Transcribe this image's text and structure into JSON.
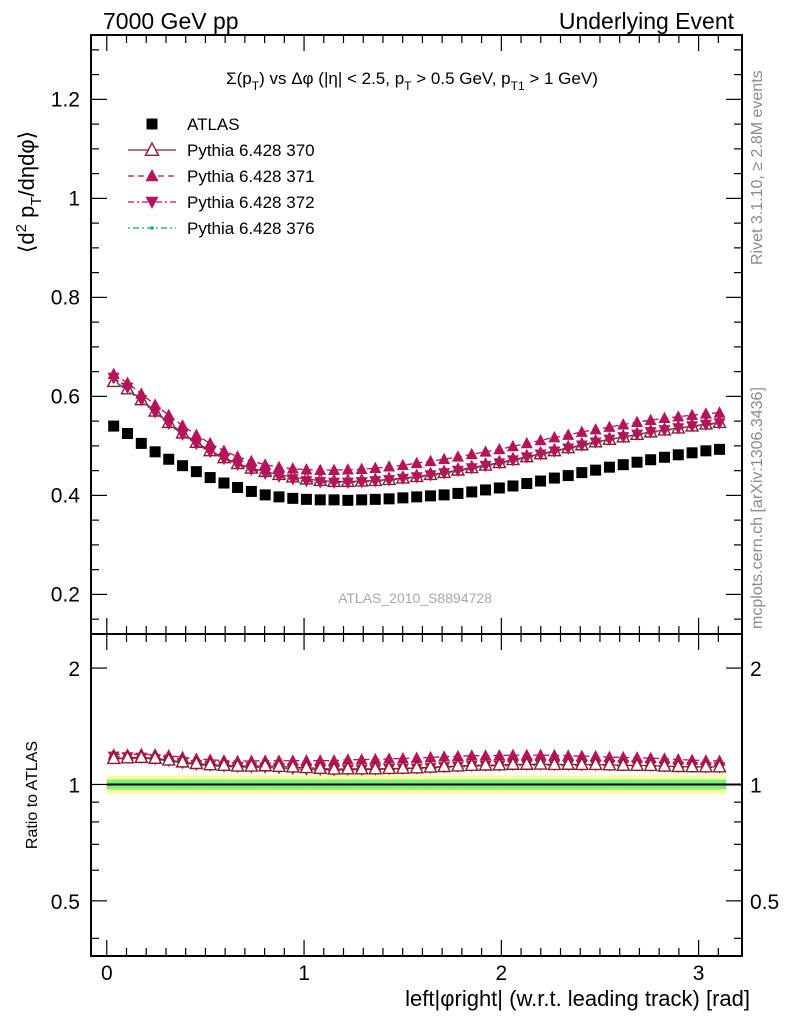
{
  "header": {
    "left": "7000 GeV pp",
    "right": "Underlying Event"
  },
  "side_texts": {
    "rivet": "Rivet 3.1.10, ≥ 2.8M events",
    "mcplots": "mcplots.cern.ch [arXiv:1306.3436]"
  },
  "watermark": "ATLAS_2010_S8894728",
  "colors": {
    "data": "#000000",
    "p370": "#8b1a2b",
    "p371": "#b5135a",
    "p372": "#b5135a",
    "p376": "#1a9a8a",
    "band_inner": "#7cf07c",
    "band_outer": "#ffff99"
  },
  "chart_data": [
    {
      "type": "scatter",
      "title": "Σ(p_T) vs Δφ (|η| < 2.5, p_T > 0.5 GeV, p_T1 > 1 GeV)",
      "ylabel": "⟨d² p_T/dηdφ⟩",
      "xlim": [
        -0.08,
        3.22
      ],
      "ylim": [
        0.12,
        1.33
      ],
      "yticks": [
        0.2,
        0.4,
        0.6,
        0.8,
        1.0,
        1.2
      ],
      "ytick_labels": [
        "0.2",
        "0.4",
        "0.6",
        "0.8",
        "1",
        "1.2"
      ],
      "legend_position": "top-left",
      "x": [
        0.035,
        0.105,
        0.175,
        0.245,
        0.314,
        0.384,
        0.454,
        0.524,
        0.594,
        0.663,
        0.733,
        0.803,
        0.873,
        0.943,
        1.012,
        1.082,
        1.152,
        1.222,
        1.292,
        1.361,
        1.431,
        1.501,
        1.571,
        1.641,
        1.71,
        1.78,
        1.85,
        1.92,
        1.99,
        2.059,
        2.129,
        2.199,
        2.269,
        2.339,
        2.408,
        2.478,
        2.548,
        2.618,
        2.688,
        2.757,
        2.827,
        2.897,
        2.967,
        3.037,
        3.106
      ],
      "series": [
        {
          "name": "ATLAS",
          "marker": "square",
          "values": [
            0.54,
            0.525,
            0.505,
            0.488,
            0.473,
            0.46,
            0.448,
            0.436,
            0.425,
            0.416,
            0.408,
            0.401,
            0.397,
            0.394,
            0.392,
            0.391,
            0.391,
            0.39,
            0.391,
            0.392,
            0.393,
            0.395,
            0.397,
            0.399,
            0.401,
            0.404,
            0.407,
            0.411,
            0.415,
            0.419,
            0.424,
            0.429,
            0.435,
            0.44,
            0.446,
            0.451,
            0.457,
            0.462,
            0.467,
            0.472,
            0.477,
            0.482,
            0.486,
            0.49,
            0.493
          ]
        },
        {
          "name": "Pythia 6.428 370",
          "marker": "triangle-open",
          "values": [
            0.63,
            0.615,
            0.593,
            0.57,
            0.547,
            0.526,
            0.507,
            0.49,
            0.476,
            0.464,
            0.455,
            0.448,
            0.442,
            0.437,
            0.433,
            0.43,
            0.428,
            0.428,
            0.429,
            0.43,
            0.432,
            0.435,
            0.438,
            0.442,
            0.446,
            0.451,
            0.456,
            0.461,
            0.466,
            0.472,
            0.478,
            0.484,
            0.49,
            0.496,
            0.502,
            0.508,
            0.513,
            0.518,
            0.523,
            0.528,
            0.532,
            0.536,
            0.54,
            0.544,
            0.547
          ]
        },
        {
          "name": "Pythia 6.428 371",
          "marker": "triangle-up",
          "values": [
            0.645,
            0.627,
            0.605,
            0.583,
            0.562,
            0.541,
            0.522,
            0.505,
            0.49,
            0.478,
            0.469,
            0.462,
            0.457,
            0.454,
            0.452,
            0.451,
            0.451,
            0.452,
            0.453,
            0.455,
            0.458,
            0.461,
            0.465,
            0.469,
            0.473,
            0.478,
            0.483,
            0.488,
            0.493,
            0.499,
            0.505,
            0.511,
            0.517,
            0.522,
            0.528,
            0.533,
            0.538,
            0.543,
            0.548,
            0.552,
            0.556,
            0.559,
            0.562,
            0.565,
            0.567
          ]
        },
        {
          "name": "Pythia 6.428 372",
          "marker": "triangle-down",
          "values": [
            0.638,
            0.618,
            0.593,
            0.568,
            0.545,
            0.523,
            0.504,
            0.488,
            0.474,
            0.462,
            0.452,
            0.444,
            0.438,
            0.433,
            0.429,
            0.427,
            0.426,
            0.426,
            0.427,
            0.429,
            0.431,
            0.434,
            0.437,
            0.441,
            0.445,
            0.45,
            0.455,
            0.46,
            0.465,
            0.471,
            0.477,
            0.483,
            0.489,
            0.495,
            0.501,
            0.507,
            0.513,
            0.518,
            0.523,
            0.528,
            0.532,
            0.536,
            0.54,
            0.543,
            0.546
          ]
        },
        {
          "name": "Pythia 6.428 376",
          "marker": "dot",
          "values": [
            0.63,
            0.612,
            0.59,
            0.567,
            0.544,
            0.523,
            0.504,
            0.487,
            0.473,
            0.461,
            0.451,
            0.443,
            0.437,
            0.432,
            0.428,
            0.425,
            0.424,
            0.424,
            0.425,
            0.427,
            0.429,
            0.432,
            0.435,
            0.439,
            0.443,
            0.448,
            0.453,
            0.458,
            0.463,
            0.469,
            0.475,
            0.481,
            0.487,
            0.493,
            0.499,
            0.505,
            0.511,
            0.516,
            0.521,
            0.526,
            0.53,
            0.534,
            0.538,
            0.542,
            0.545
          ]
        }
      ]
    },
    {
      "type": "scatter",
      "ylabel": "Ratio to ATLAS",
      "xlabel": "left|φright| (w.r.t. leading track) [rad]",
      "xlim": [
        -0.08,
        3.22
      ],
      "ylim": [
        0.36,
        2.45
      ],
      "log_y": true,
      "yticks": [
        0.5,
        1,
        2
      ],
      "ytick_labels": [
        "0.5",
        "1",
        "2"
      ],
      "xticks": [
        0,
        1,
        2,
        3
      ],
      "xtick_labels": [
        "0",
        "1",
        "2",
        "3"
      ],
      "reference_band": {
        "inner": [
          0.97,
          1.03
        ],
        "outer": [
          0.945,
          1.055
        ]
      },
      "series_ratios": [
        {
          "name": "Pythia 6.428 370",
          "values": [
            1.167,
            1.171,
            1.174,
            1.168,
            1.156,
            1.143,
            1.132,
            1.124,
            1.12,
            1.115,
            1.115,
            1.117,
            1.113,
            1.109,
            1.105,
            1.1,
            1.095,
            1.097,
            1.097,
            1.097,
            1.099,
            1.101,
            1.103,
            1.108,
            1.112,
            1.116,
            1.12,
            1.122,
            1.123,
            1.127,
            1.127,
            1.128,
            1.126,
            1.127,
            1.126,
            1.126,
            1.123,
            1.121,
            1.12,
            1.119,
            1.115,
            1.112,
            1.111,
            1.11,
            1.11
          ]
        },
        {
          "name": "Pythia 6.428 371",
          "values": [
            1.194,
            1.194,
            1.198,
            1.195,
            1.188,
            1.176,
            1.165,
            1.158,
            1.153,
            1.149,
            1.15,
            1.152,
            1.151,
            1.152,
            1.153,
            1.153,
            1.153,
            1.159,
            1.159,
            1.161,
            1.165,
            1.167,
            1.171,
            1.175,
            1.18,
            1.183,
            1.187,
            1.187,
            1.188,
            1.191,
            1.191,
            1.191,
            1.189,
            1.186,
            1.184,
            1.182,
            1.177,
            1.175,
            1.173,
            1.169,
            1.166,
            1.16,
            1.156,
            1.153,
            1.15
          ]
        },
        {
          "name": "Pythia 6.428 372",
          "values": [
            1.181,
            1.177,
            1.174,
            1.164,
            1.152,
            1.137,
            1.125,
            1.119,
            1.115,
            1.111,
            1.108,
            1.107,
            1.103,
            1.099,
            1.094,
            1.092,
            1.09,
            1.092,
            1.092,
            1.094,
            1.097,
            1.099,
            1.101,
            1.105,
            1.11,
            1.114,
            1.118,
            1.119,
            1.12,
            1.124,
            1.125,
            1.126,
            1.124,
            1.125,
            1.123,
            1.124,
            1.123,
            1.121,
            1.12,
            1.119,
            1.115,
            1.112,
            1.111,
            1.108,
            1.108
          ]
        },
        {
          "name": "Pythia 6.428 376",
          "values": [
            1.167,
            1.166,
            1.168,
            1.162,
            1.15,
            1.137,
            1.125,
            1.117,
            1.113,
            1.108,
            1.105,
            1.105,
            1.101,
            1.096,
            1.092,
            1.087,
            1.084,
            1.087,
            1.087,
            1.089,
            1.092,
            1.094,
            1.096,
            1.1,
            1.105,
            1.109,
            1.113,
            1.114,
            1.116,
            1.119,
            1.12,
            1.121,
            1.12,
            1.12,
            1.119,
            1.12,
            1.118,
            1.117,
            1.116,
            1.114,
            1.111,
            1.108,
            1.107,
            1.106,
            1.105
          ]
        }
      ]
    }
  ]
}
